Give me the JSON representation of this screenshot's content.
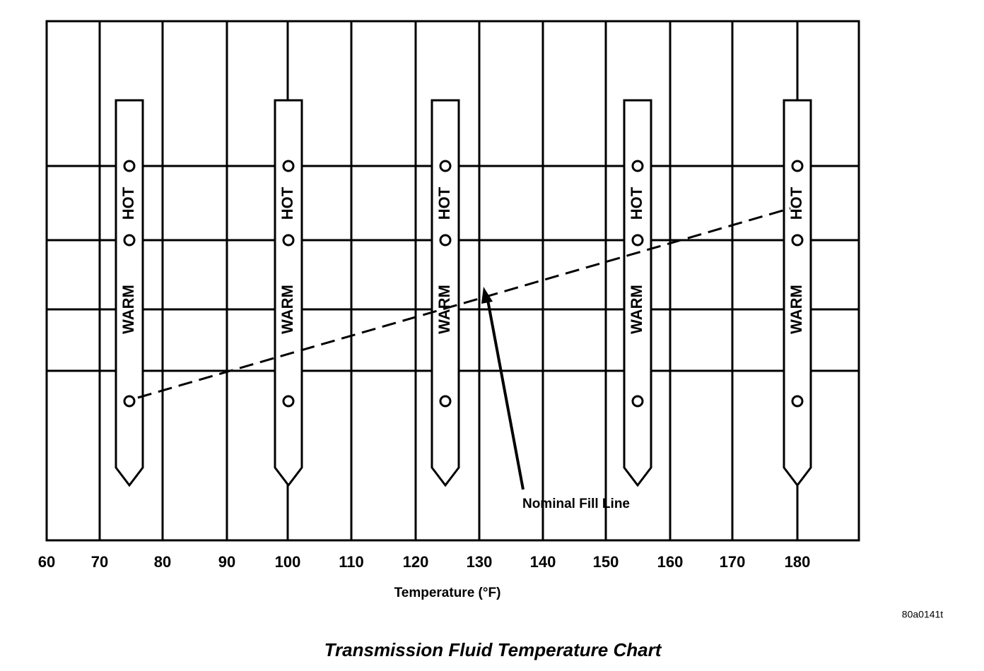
{
  "axis": {
    "ticks": [
      "60",
      "70",
      "80",
      "90",
      "100",
      "110",
      "120",
      "130",
      "140",
      "150",
      "160",
      "170",
      "180"
    ],
    "label": "Temperature (°F)"
  },
  "dipsticks": [
    {
      "hot": "HOT",
      "warm": "WARM"
    },
    {
      "hot": "HOT",
      "warm": "WARM"
    },
    {
      "hot": "HOT",
      "warm": "WARM"
    },
    {
      "hot": "HOT",
      "warm": "WARM"
    },
    {
      "hot": "HOT",
      "warm": "WARM"
    }
  ],
  "annotation": "Nominal Fill Line",
  "figure_id": "80a0141t",
  "title": "Transmission Fluid Temperature Chart"
}
